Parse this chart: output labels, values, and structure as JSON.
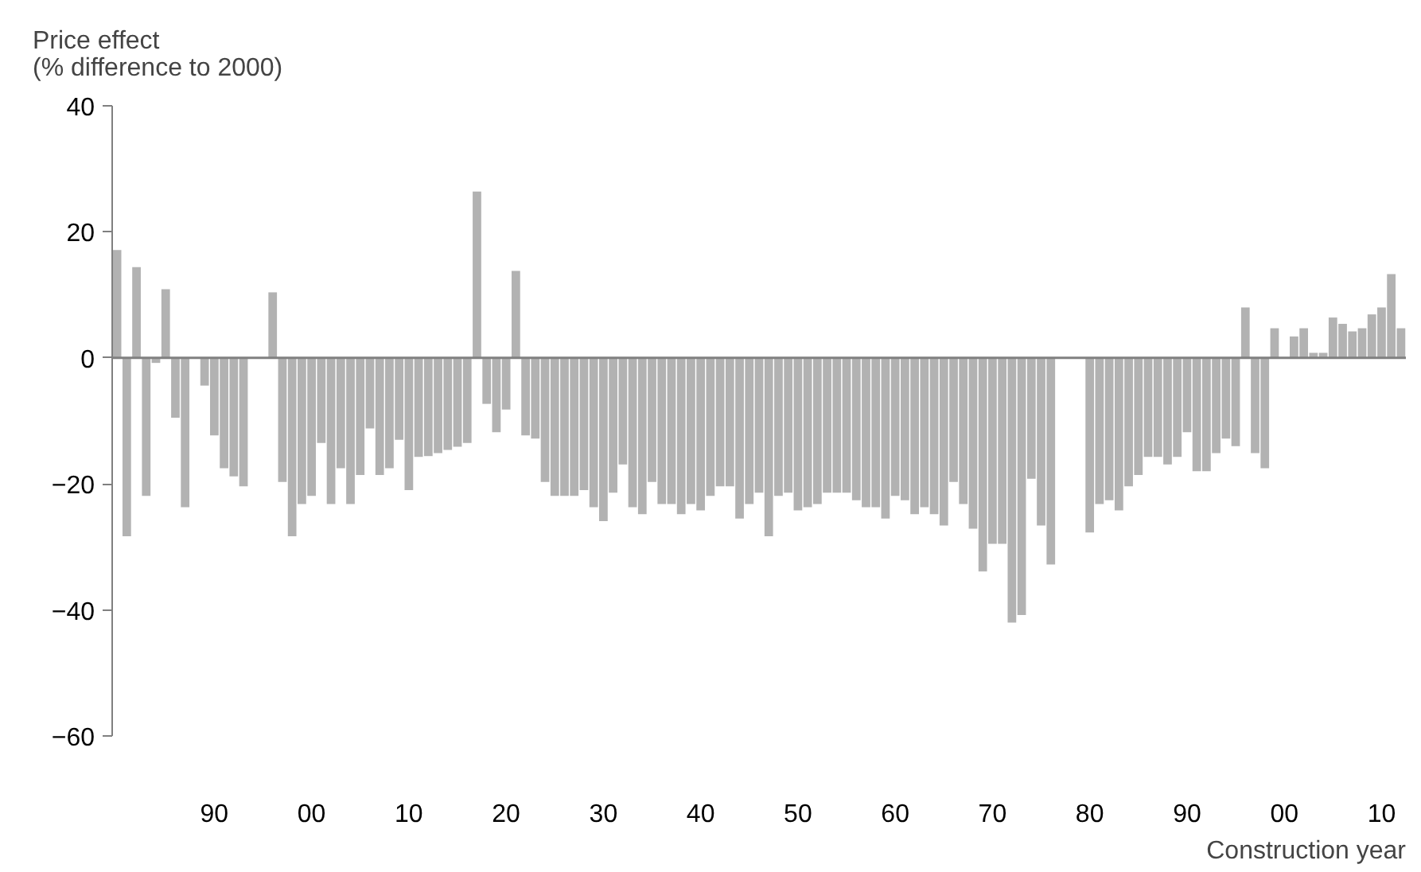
{
  "chart_data": {
    "type": "bar",
    "ylabel": "Price effect\n(% difference to 2000)",
    "xlabel": "Construction year",
    "categories": [
      null,
      null,
      null,
      null,
      null,
      null,
      null,
      null,
      null,
      null,
      "90",
      null,
      null,
      null,
      null,
      null,
      null,
      null,
      null,
      null,
      "00",
      null,
      null,
      null,
      null,
      null,
      null,
      null,
      null,
      null,
      "10",
      null,
      null,
      null,
      null,
      null,
      null,
      null,
      null,
      null,
      "20",
      null,
      null,
      null,
      null,
      null,
      null,
      null,
      null,
      null,
      "30",
      null,
      null,
      null,
      null,
      null,
      null,
      null,
      null,
      null,
      "40",
      null,
      null,
      null,
      null,
      null,
      null,
      null,
      null,
      null,
      "50",
      null,
      null,
      null,
      null,
      null,
      null,
      null,
      null,
      null,
      "60",
      null,
      null,
      null,
      null,
      null,
      null,
      null,
      null,
      null,
      "70",
      null,
      null,
      null,
      null,
      null,
      null,
      null,
      null,
      null,
      "80",
      null,
      null,
      null,
      null,
      null,
      null,
      null,
      null,
      null,
      "90",
      null,
      null,
      null,
      null,
      null,
      null,
      null,
      null,
      null,
      "00",
      null,
      null,
      null,
      null,
      null,
      null,
      null,
      null,
      null,
      "10",
      null,
      null
    ],
    "values": [
      17.1,
      -28.3,
      14.4,
      -21.9,
      -0.8,
      10.9,
      -9.5,
      -23.7,
      null,
      -4.4,
      -12.3,
      -17.5,
      -18.8,
      -20.4,
      null,
      null,
      10.4,
      -19.7,
      -28.3,
      -23.2,
      -21.9,
      -13.5,
      -23.2,
      -17.5,
      -23.2,
      -18.6,
      -11.2,
      -18.6,
      -17.5,
      -13.0,
      -21.0,
      -15.7,
      -15.6,
      -15.1,
      -14.6,
      -14.1,
      -13.5,
      26.4,
      -7.3,
      -11.8,
      -8.2,
      13.8,
      -12.3,
      -12.8,
      -19.7,
      -21.9,
      -21.9,
      -21.9,
      -21.0,
      -23.7,
      -25.9,
      -21.4,
      -16.9,
      -23.7,
      -24.8,
      -19.7,
      -23.2,
      -23.2,
      -24.8,
      -23.2,
      -24.2,
      -21.9,
      -20.4,
      -20.4,
      -25.5,
      -23.2,
      -21.4,
      -28.3,
      -21.9,
      -21.4,
      -24.2,
      -23.7,
      -23.2,
      -21.4,
      -21.4,
      -21.4,
      -22.6,
      -23.7,
      -23.7,
      -25.5,
      -21.9,
      -22.6,
      -24.8,
      -23.7,
      -24.8,
      -26.6,
      -19.7,
      -23.2,
      -27.1,
      -33.9,
      -29.5,
      -29.5,
      -42.0,
      -40.8,
      -19.2,
      -26.6,
      -32.8,
      null,
      null,
      null,
      -27.7,
      -23.2,
      -22.6,
      -24.2,
      -20.4,
      -18.6,
      -15.7,
      -15.7,
      -16.9,
      -15.7,
      -11.8,
      -18.0,
      -18.0,
      -15.1,
      -12.8,
      -14.0,
      8.0,
      -15.1,
      -17.5,
      4.7,
      null,
      3.4,
      4.7,
      0.8,
      0.8,
      6.4,
      5.4,
      4.2,
      4.7,
      6.9,
      8.0,
      13.3,
      4.7
    ],
    "color": "#b2b2b2",
    "ylim": [
      -60,
      40
    ],
    "yticks": [
      -60,
      -40,
      -20,
      0,
      20,
      40
    ],
    "ref_lines": [
      {
        "axis": "y",
        "value": 0,
        "color": "#808080"
      }
    ],
    "grid": false
  }
}
